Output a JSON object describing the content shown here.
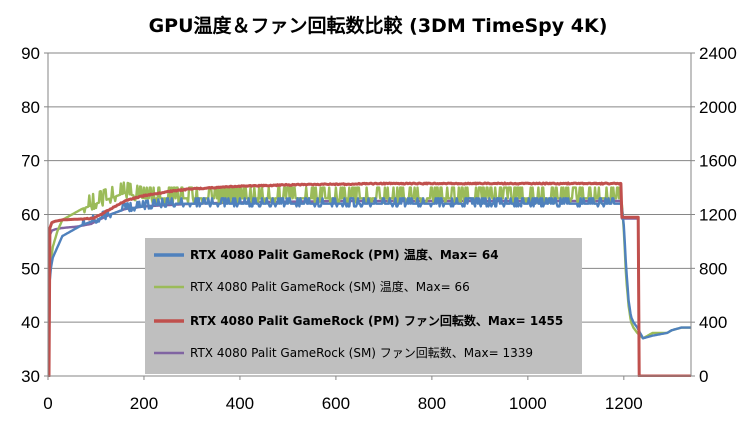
{
  "chart_data": {
    "type": "line",
    "title": "GPU温度＆ファン回転数比較 (3DM TimeSpy 4K)",
    "xlabel": "",
    "ylabel": "",
    "y2label": "",
    "xlim": [
      0,
      1340
    ],
    "ylim": [
      30,
      90
    ],
    "y2lim": [
      0,
      2400
    ],
    "x_ticks": [
      "0",
      "200",
      "400",
      "600",
      "800",
      "1000",
      "1200"
    ],
    "y_ticks": [
      "30",
      "40",
      "50",
      "60",
      "70",
      "80",
      "90"
    ],
    "y2_ticks": [
      "0",
      "400",
      "800",
      "1200",
      "1600",
      "2000",
      "2400"
    ],
    "grid": "horizontal",
    "legend_position": "center",
    "series": [
      {
        "name": "RTX 4080 Palit GameRock (PM) 温度、Max= 64",
        "color": "#4f81bd",
        "axis": "left",
        "bold": true,
        "x": [
          0,
          3,
          6,
          10,
          20,
          30,
          50,
          70,
          100,
          130,
          160,
          200,
          250,
          300,
          400,
          500,
          600,
          700,
          800,
          900,
          1000,
          1100,
          1150,
          1195,
          1200,
          1205,
          1210,
          1215,
          1220,
          1228,
          1240,
          1260,
          1290,
          1300,
          1320,
          1335
        ],
        "y": [
          46,
          47,
          50,
          52,
          54,
          56,
          57,
          58,
          59,
          60,
          61,
          61.5,
          62,
          62,
          62,
          62,
          62,
          62,
          62,
          62,
          62,
          62,
          62,
          62,
          58,
          50,
          44,
          41,
          40,
          39,
          37,
          37.5,
          38,
          38.5,
          39,
          39
        ]
      },
      {
        "name": "RTX 4080 Palit GameRock (SM) 温度、Max= 66",
        "color": "#9bbb59",
        "axis": "left",
        "bold": false,
        "x": [
          0,
          3,
          6,
          10,
          20,
          30,
          50,
          70,
          100,
          130,
          160,
          200,
          250,
          300,
          400,
          500,
          600,
          700,
          800,
          900,
          1000,
          1100,
          1150,
          1195,
          1200,
          1205,
          1210,
          1215,
          1220,
          1228,
          1240,
          1260,
          1290,
          1300,
          1320,
          1335
        ],
        "y": [
          47,
          48,
          51,
          54,
          57,
          59,
          60,
          61,
          62,
          63,
          64,
          63,
          63,
          63,
          63,
          63,
          63,
          63,
          63,
          63,
          63,
          63,
          63,
          63,
          57,
          48,
          43,
          40,
          39,
          38,
          37,
          38,
          38,
          38.5,
          39,
          39
        ]
      },
      {
        "name": "RTX 4080 Palit GameRock (PM) ファン回転数、Max= 1455",
        "color": "#c0504d",
        "axis": "right",
        "bold": true,
        "x": [
          0,
          3,
          4,
          8,
          15,
          30,
          60,
          90,
          100,
          130,
          160,
          200,
          250,
          300,
          400,
          500,
          600,
          700,
          800,
          900,
          1000,
          1100,
          1150,
          1195,
          1196,
          1230,
          1231,
          1240,
          1280,
          1335
        ],
        "y": [
          0,
          0,
          1100,
          1140,
          1150,
          1160,
          1165,
          1170,
          1180,
          1240,
          1300,
          1340,
          1370,
          1390,
          1410,
          1420,
          1425,
          1430,
          1430,
          1430,
          1430,
          1430,
          1430,
          1430,
          1180,
          1180,
          0,
          0,
          0,
          0
        ]
      },
      {
        "name": "RTX 4080 Palit GameRock (SM) ファン回転数、Max= 1339",
        "color": "#8064a2",
        "axis": "right",
        "bold": false,
        "x": [
          0,
          3,
          4,
          8,
          15,
          30,
          60,
          90,
          100,
          130,
          160,
          200,
          250,
          300,
          400,
          500,
          600,
          700,
          800,
          900,
          1000,
          1100,
          1150,
          1195,
          1196,
          1230,
          1231,
          1240,
          1280,
          1335
        ],
        "y": [
          0,
          0,
          1050,
          1080,
          1090,
          1100,
          1110,
          1130,
          1150,
          1200,
          1240,
          1260,
          1270,
          1280,
          1290,
          1295,
          1300,
          1300,
          1300,
          1300,
          1300,
          1300,
          1300,
          1300,
          1170,
          1170,
          0,
          0,
          0,
          0
        ]
      }
    ]
  }
}
